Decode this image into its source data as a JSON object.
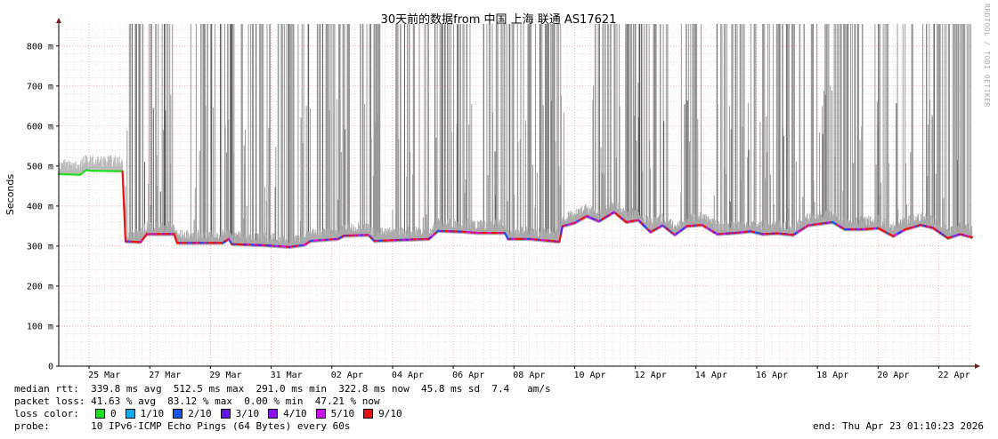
{
  "chart_data": {
    "type": "line",
    "title": "30天前的数据from 中国 上海 联通 AS17621",
    "ylabel": "Seconds",
    "ylim": [
      0,
      0.855
    ],
    "grid": true,
    "y_ticks": [
      {
        "value": 0,
        "label": "0"
      },
      {
        "value": 0.1,
        "label": "100 m"
      },
      {
        "value": 0.2,
        "label": "200 m"
      },
      {
        "value": 0.3,
        "label": "300 m"
      },
      {
        "value": 0.4,
        "label": "400 m"
      },
      {
        "value": 0.5,
        "label": "500 m"
      },
      {
        "value": 0.6,
        "label": "600 m"
      },
      {
        "value": 0.7,
        "label": "700 m"
      },
      {
        "value": 0.8,
        "label": "800 m"
      }
    ],
    "x_ticks": [
      {
        "day": 1.5,
        "label": "25 Mar"
      },
      {
        "day": 3.5,
        "label": "27 Mar"
      },
      {
        "day": 5.5,
        "label": "29 Mar"
      },
      {
        "day": 7.5,
        "label": "31 Mar"
      },
      {
        "day": 9.5,
        "label": "02 Apr"
      },
      {
        "day": 11.5,
        "label": "04 Apr"
      },
      {
        "day": 13.5,
        "label": "06 Apr"
      },
      {
        "day": 15.5,
        "label": "08 Apr"
      },
      {
        "day": 17.5,
        "label": "10 Apr"
      },
      {
        "day": 19.5,
        "label": "12 Apr"
      },
      {
        "day": 21.5,
        "label": "14 Apr"
      },
      {
        "day": 23.5,
        "label": "16 Apr"
      },
      {
        "day": 25.5,
        "label": "18 Apr"
      },
      {
        "day": 27.5,
        "label": "20 Apr"
      },
      {
        "day": 29.5,
        "label": "22 Apr"
      }
    ],
    "x_range_days": [
      0,
      30.1
    ],
    "median_series": {
      "name": "median rtt",
      "points": [
        [
          0.0,
          0.48
        ],
        [
          0.7,
          0.478
        ],
        [
          0.9,
          0.49
        ],
        [
          1.1,
          0.488
        ],
        [
          2.1,
          0.487
        ],
        [
          2.2,
          0.312
        ],
        [
          2.7,
          0.31
        ],
        [
          2.9,
          0.33
        ],
        [
          3.8,
          0.33
        ],
        [
          3.9,
          0.308
        ],
        [
          5.4,
          0.308
        ],
        [
          5.6,
          0.318
        ],
        [
          5.7,
          0.305
        ],
        [
          6.8,
          0.302
        ],
        [
          7.6,
          0.298
        ],
        [
          8.1,
          0.303
        ],
        [
          8.3,
          0.313
        ],
        [
          9.2,
          0.318
        ],
        [
          9.4,
          0.326
        ],
        [
          10.2,
          0.328
        ],
        [
          10.4,
          0.313
        ],
        [
          11.1,
          0.315
        ],
        [
          12.2,
          0.318
        ],
        [
          12.5,
          0.338
        ],
        [
          13.3,
          0.336
        ],
        [
          13.8,
          0.333
        ],
        [
          14.7,
          0.333
        ],
        [
          14.8,
          0.318
        ],
        [
          15.5,
          0.318
        ],
        [
          16.5,
          0.311
        ],
        [
          16.6,
          0.35
        ],
        [
          17.0,
          0.358
        ],
        [
          17.4,
          0.375
        ],
        [
          17.8,
          0.362
        ],
        [
          18.3,
          0.385
        ],
        [
          18.7,
          0.36
        ],
        [
          19.1,
          0.365
        ],
        [
          19.5,
          0.335
        ],
        [
          19.9,
          0.352
        ],
        [
          20.3,
          0.328
        ],
        [
          20.7,
          0.35
        ],
        [
          21.2,
          0.353
        ],
        [
          21.7,
          0.33
        ],
        [
          22.3,
          0.333
        ],
        [
          22.8,
          0.337
        ],
        [
          23.2,
          0.33
        ],
        [
          23.7,
          0.332
        ],
        [
          24.2,
          0.328
        ],
        [
          24.7,
          0.352
        ],
        [
          25.0,
          0.355
        ],
        [
          25.5,
          0.36
        ],
        [
          25.9,
          0.342
        ],
        [
          26.5,
          0.342
        ],
        [
          27.0,
          0.345
        ],
        [
          27.5,
          0.325
        ],
        [
          27.9,
          0.342
        ],
        [
          28.4,
          0.353
        ],
        [
          28.8,
          0.346
        ],
        [
          29.3,
          0.32
        ],
        [
          29.7,
          0.33
        ],
        [
          30.1,
          0.322
        ]
      ]
    },
    "loss_spike_ranges_days": [
      [
        2.2,
        3.8
      ],
      [
        4.3,
        5.9
      ],
      [
        6.0,
        8.3
      ],
      [
        8.5,
        9.6
      ],
      [
        9.9,
        10.6
      ],
      [
        11.0,
        12.2
      ],
      [
        12.4,
        13.7
      ],
      [
        14.0,
        16.7
      ],
      [
        17.6,
        20.1
      ],
      [
        20.5,
        21.2
      ],
      [
        21.6,
        22.6
      ],
      [
        22.7,
        24.6
      ],
      [
        24.8,
        26.6
      ],
      [
        26.9,
        28.2
      ],
      [
        28.4,
        30.1
      ]
    ],
    "loss_colors": [
      {
        "label": "0",
        "color": "#22dd22"
      },
      {
        "label": "1/10",
        "color": "#11aaee"
      },
      {
        "label": "2/10",
        "color": "#1155ee"
      },
      {
        "label": "3/10",
        "color": "#6611ee"
      },
      {
        "label": "4/10",
        "color": "#8811ee"
      },
      {
        "label": "5/10",
        "color": "#cc11ee"
      },
      {
        "label": "9/10",
        "color": "#ee1111"
      }
    ]
  },
  "stats": {
    "median_rtt": "median rtt:  339.8 ms avg  512.5 ms max  291.0 ms min  322.8 ms now  45.8 ms sd  7.4   am/s",
    "packet_loss": "packet loss: 41.63 % avg  83.12 % max  0.00 % min  47.21 % now",
    "loss_color_label": "loss color:",
    "probe": "probe:       10 IPv6-ICMP Echo Pings (64 Bytes) every 60s",
    "end": "end: Thu Apr 23 01:10:23 2026"
  },
  "watermark": "RRDTOOL / TOBI OETIKER"
}
